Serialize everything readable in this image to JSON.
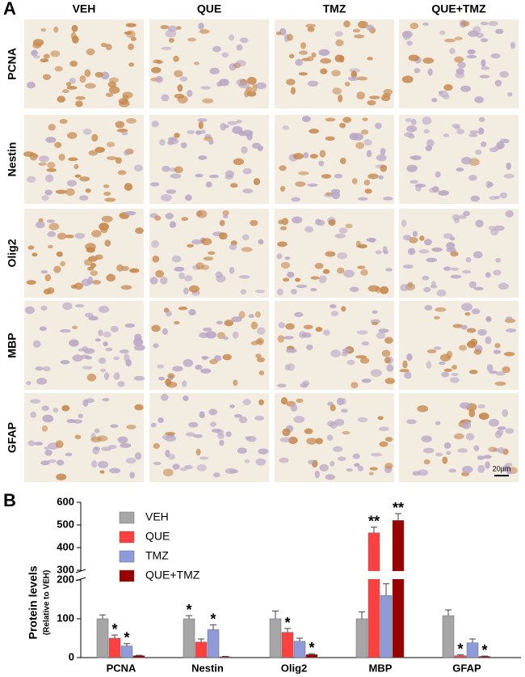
{
  "panel_a": {
    "label": "A",
    "columns": [
      "VEH",
      "QUE",
      "TMZ",
      "QUE+TMZ"
    ],
    "rows": [
      "PCNA",
      "Nestin",
      "Olig2",
      "MBP",
      "GFAP"
    ],
    "scale_bar": "20μm"
  },
  "chart_data": {
    "type": "bar",
    "label": "B",
    "y_label": "Protein levels",
    "y_sublabel": "(Relative to VEH)",
    "categories": [
      "PCNA",
      "Nestin",
      "Olig2",
      "MBP",
      "GFAP"
    ],
    "series": [
      {
        "name": "VEH",
        "color": "#a6a6a6",
        "values": [
          100,
          100,
          100,
          100,
          108
        ],
        "errors": [
          10,
          8,
          20,
          18,
          15
        ],
        "significance": [
          null,
          "*",
          null,
          null,
          null
        ]
      },
      {
        "name": "QUE",
        "color": "#ff4040",
        "values": [
          50,
          40,
          65,
          465,
          5
        ],
        "errors": [
          8,
          8,
          10,
          25,
          2
        ],
        "significance": [
          "*",
          null,
          "*",
          "**",
          "*"
        ]
      },
      {
        "name": "TMZ",
        "color": "#8e9bd8",
        "values": [
          30,
          72,
          42,
          160,
          38
        ],
        "errors": [
          6,
          12,
          8,
          30,
          10
        ],
        "significance": [
          "*",
          "*",
          null,
          null,
          null
        ]
      },
      {
        "name": "QUE+TMZ",
        "color": "#990000",
        "values": [
          5,
          2,
          8,
          520,
          3
        ],
        "errors": [
          1,
          1,
          2,
          30,
          1
        ],
        "significance": [
          null,
          null,
          "*",
          "**",
          "*"
        ]
      }
    ],
    "ylim": [
      0,
      600
    ],
    "yticks": [
      0,
      100,
      200,
      300,
      400,
      500,
      600
    ],
    "axis_break": [
      200,
      300
    ],
    "legend": "upper left"
  }
}
